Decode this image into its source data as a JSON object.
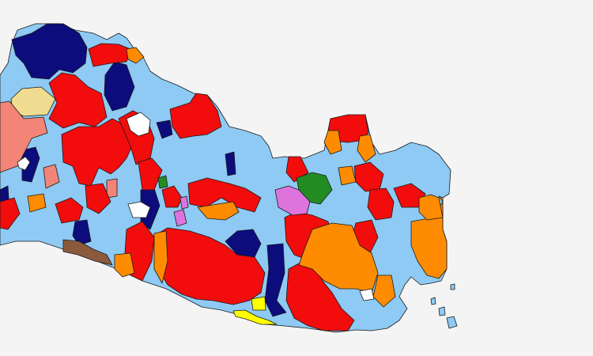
{
  "map": {
    "background": "#f4f4f4",
    "palette": {
      "light_blue": "#8ecaf3",
      "red": "#f20c0c",
      "navy": "#0c0c7d",
      "orange": "#ff8c00",
      "salmon": "#f38478",
      "khaki": "#f0dc90",
      "green": "#228b22",
      "orchid": "#dd74dd",
      "brown": "#8b5a3c",
      "yellow": "#ffff00",
      "white": "#ffffff"
    }
  }
}
